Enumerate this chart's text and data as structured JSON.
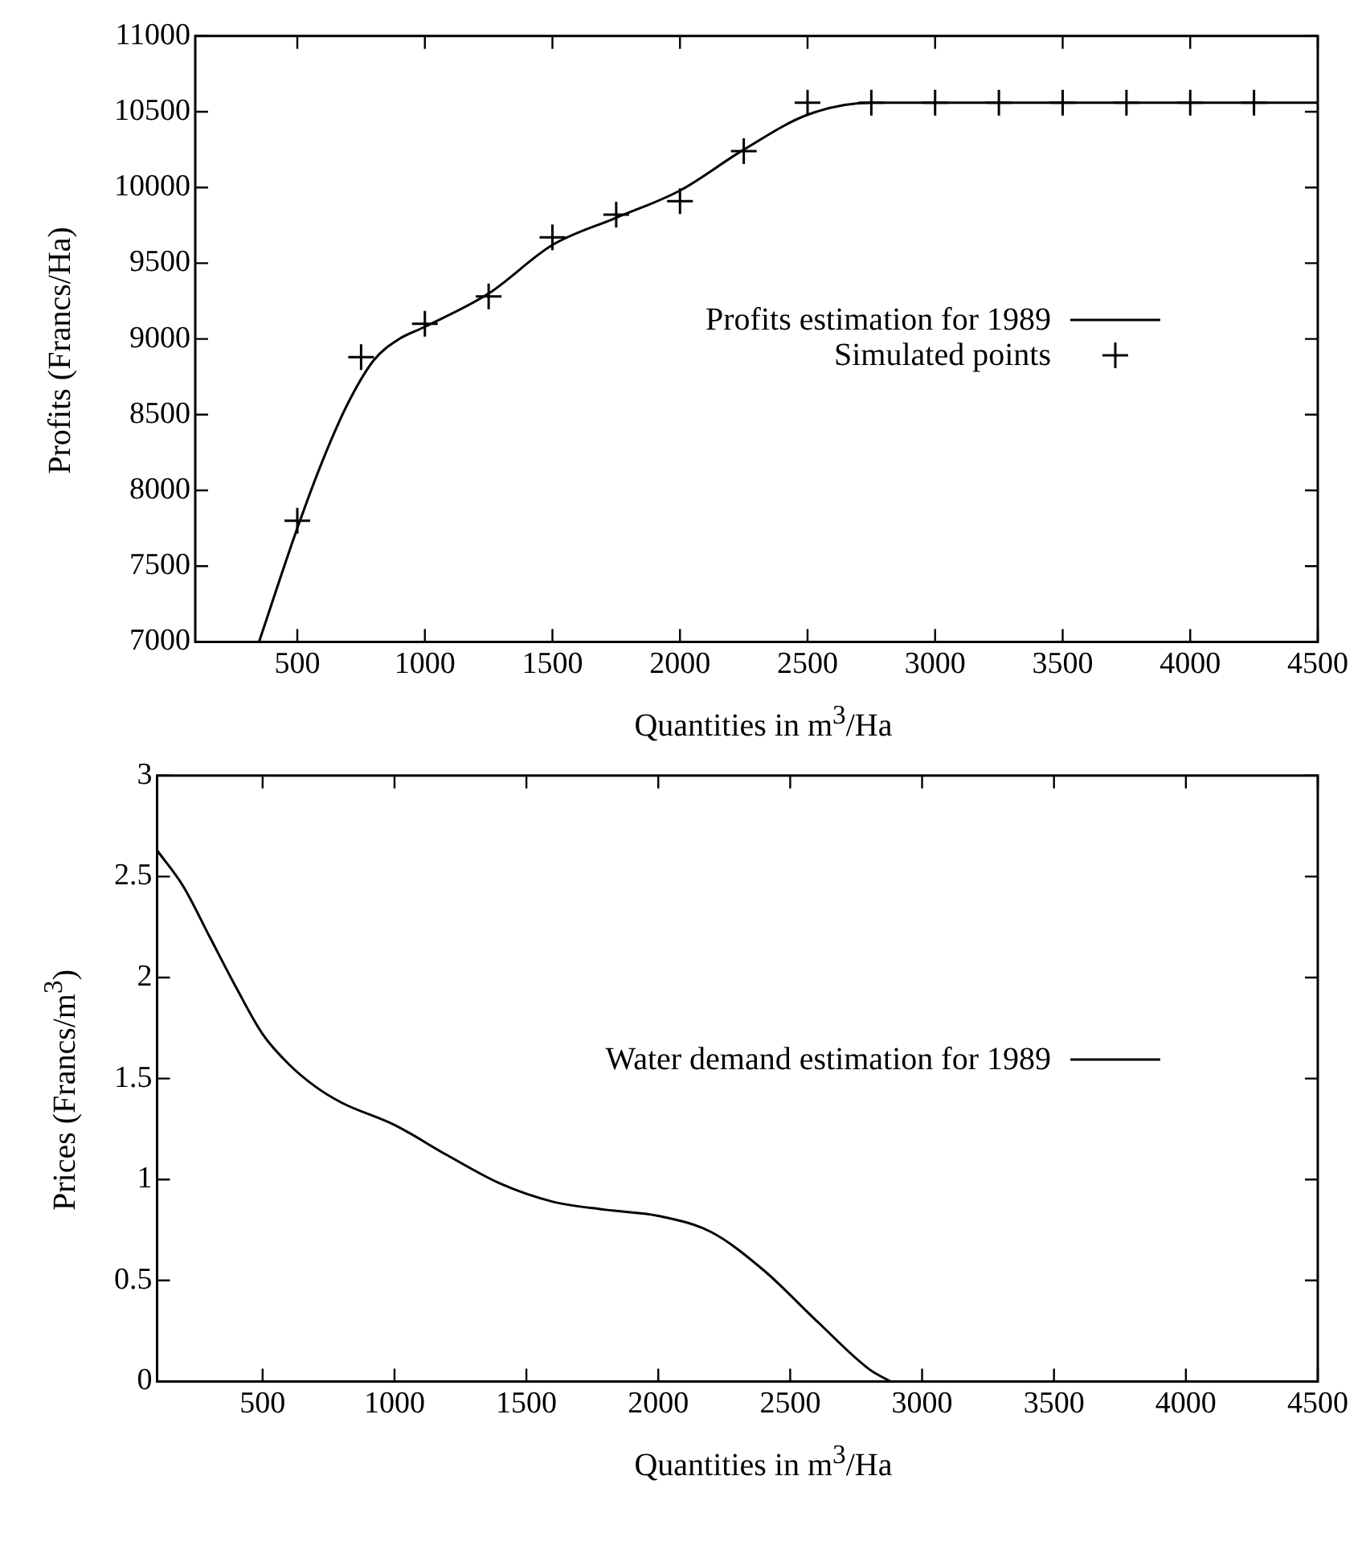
{
  "chart_data": [
    {
      "type": "line",
      "xlabel": "Quantities in m$^{3}$/Ha",
      "ylabel": "Profits (Francs/Ha)",
      "xlim": [
        100,
        4500
      ],
      "ylim": [
        7000,
        11000
      ],
      "xticks": [
        500,
        1000,
        1500,
        2000,
        2500,
        3000,
        3500,
        4000,
        4500
      ],
      "yticks": [
        7000,
        7500,
        8000,
        8500,
        9000,
        9500,
        10000,
        10500,
        11000
      ],
      "grid": false,
      "legend": "right",
      "series": [
        {
          "name": "Profits estimation for 1989",
          "type": "line",
          "color": "#000000",
          "marker": "none",
          "x": [
            350,
            500,
            600,
            700,
            800,
            900,
            1000,
            1250,
            1500,
            1750,
            2000,
            2250,
            2500,
            2750,
            4500
          ],
          "values": [
            7000,
            7750,
            8200,
            8580,
            8860,
            9000,
            9080,
            9300,
            9620,
            9800,
            9980,
            10250,
            10480,
            10560,
            10560
          ]
        },
        {
          "name": "Simulated points",
          "type": "scatter",
          "color": "#000000",
          "marker": "cross",
          "x": [
            500,
            750,
            1000,
            1250,
            1500,
            1750,
            2000,
            2250,
            2500,
            2750,
            3000,
            3250,
            3500,
            3750,
            4000,
            4250
          ],
          "values": [
            7800,
            8880,
            9100,
            9280,
            9670,
            9820,
            9910,
            10240,
            10560,
            10560,
            10560,
            10560,
            10560,
            10560,
            10560,
            10560
          ]
        }
      ]
    },
    {
      "type": "line",
      "xlabel": "Quantities in m$^{3}$/Ha",
      "ylabel": "Prices (Francs/m$^{3}$)",
      "xlim": [
        100,
        4500
      ],
      "ylim": [
        0,
        3
      ],
      "xticks": [
        500,
        1000,
        1500,
        2000,
        2500,
        3000,
        3500,
        4000,
        4500
      ],
      "yticks": [
        0,
        0.5,
        1,
        1.5,
        2,
        2.5,
        3
      ],
      "grid": false,
      "legend": "right",
      "series": [
        {
          "name": "Water demand estimation for 1989",
          "type": "line",
          "color": "#000000",
          "marker": "none",
          "x": [
            100,
            200,
            300,
            400,
            500,
            600,
            700,
            800,
            1000,
            1200,
            1400,
            1600,
            1800,
            2000,
            2200,
            2400,
            2600,
            2800,
            2880
          ],
          "values": [
            2.63,
            2.45,
            2.2,
            1.95,
            1.72,
            1.57,
            1.46,
            1.38,
            1.27,
            1.12,
            0.98,
            0.89,
            0.85,
            0.82,
            0.74,
            0.55,
            0.3,
            0.06,
            0
          ]
        }
      ]
    }
  ]
}
